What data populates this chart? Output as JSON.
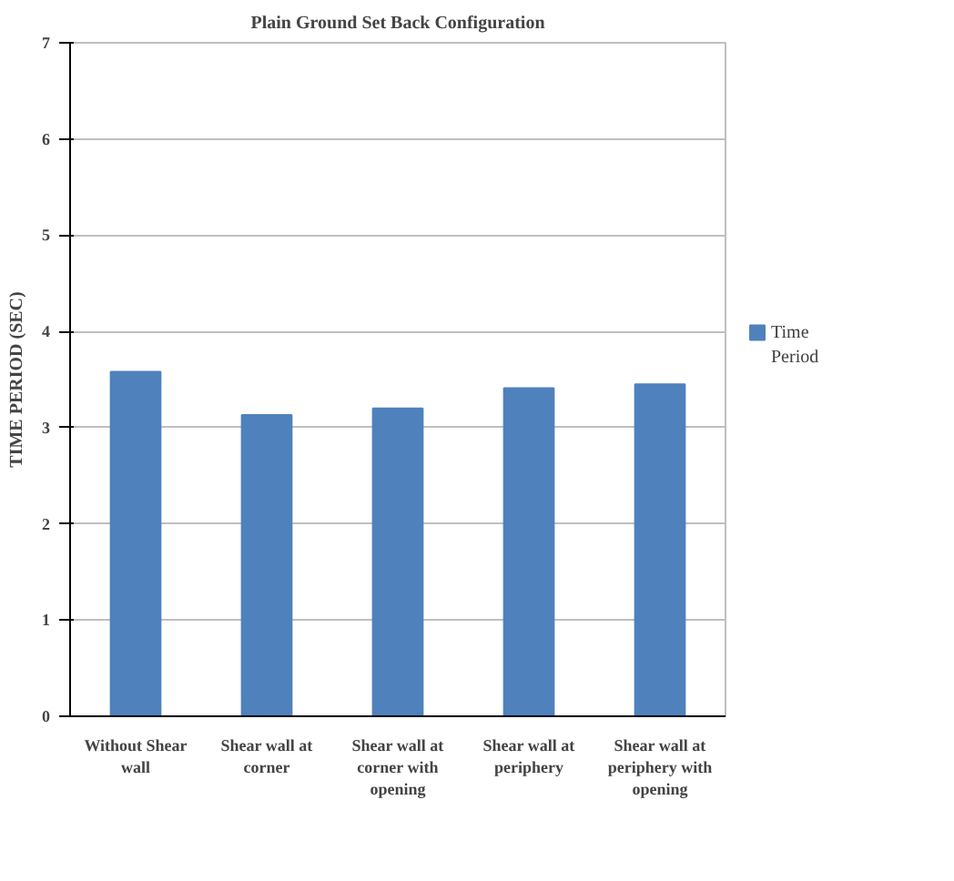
{
  "chart_data": {
    "type": "bar",
    "title": "Plain Ground Set Back Configuration",
    "ylabel": "TIME PERIOD (SEC)",
    "categories": [
      "Without Shear wall",
      "Shear wall at corner",
      "Shear wall at corner with opening",
      "Shear wall at periphery",
      "Shear wall at periphery with opening"
    ],
    "series": [
      {
        "name": "Time Period",
        "color": "#4f81bd",
        "values": [
          3.58,
          3.13,
          3.2,
          3.41,
          3.45
        ]
      }
    ],
    "ylim": [
      0,
      7
    ],
    "yticks": [
      0,
      1,
      2,
      3,
      4,
      5,
      6,
      7
    ],
    "grid": "y",
    "legend": "right"
  }
}
